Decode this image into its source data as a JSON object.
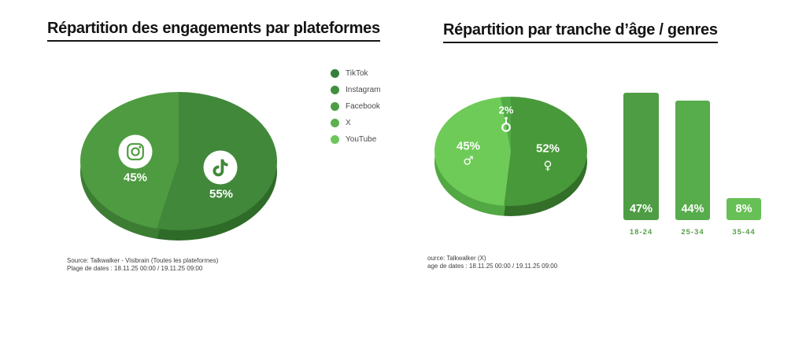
{
  "page": {
    "background": "#ffffff"
  },
  "left_section": {
    "title": "Répartition des engagements par plateformes",
    "legend": [
      {
        "label": "TikTok",
        "color": "#35813a"
      },
      {
        "label": "Instagram",
        "color": "#41903e"
      },
      {
        "label": "Facebook",
        "color": "#4d9d45"
      },
      {
        "label": "X",
        "color": "#5cb14e"
      },
      {
        "label": "YouTube",
        "color": "#6fc55b"
      }
    ],
    "source_line1": "Source: Talkwalker - Visibrain (Toutes les plateformes)",
    "source_line2": "Plage de dates : 18.11.25 00:00 / 19.11.25 09:00"
  },
  "right_section": {
    "title": "Répartition par tranche d’âge / genres",
    "source_line1": "ource: Talkwalker (X)",
    "source_line2": "age de dates : 18.11.25 00:00 / 19.11.25 09:00"
  },
  "chart_data": [
    {
      "type": "pie",
      "title": "Répartition des engagements par plateformes",
      "style": "3d",
      "legend_position": "right",
      "legend_entries": [
        "TikTok",
        "Instagram",
        "Facebook",
        "X",
        "YouTube"
      ],
      "slices": [
        {
          "label": "TikTok",
          "value": 55,
          "display": "55%",
          "color": "#41883a",
          "rim_color": "#2e6b29",
          "icon": "tiktok"
        },
        {
          "label": "Instagram",
          "value": 45,
          "display": "45%",
          "color": "#4f9b41",
          "rim_color": "#3c7d33",
          "icon": "instagram"
        }
      ]
    },
    {
      "type": "pie",
      "title": "Répartition par genres",
      "style": "3d",
      "slices": [
        {
          "label": "Femmes",
          "value": 52,
          "display": "52%",
          "symbol": "female",
          "color": "#489939",
          "rim_color": "#336f29"
        },
        {
          "label": "Hommes",
          "value": 45,
          "display": "45%",
          "symbol": "male",
          "color": "#6fcb58",
          "rim_color": "#52a843"
        },
        {
          "label": "Autre",
          "value": 2,
          "display": "2%",
          "symbol": "other",
          "color": "#52ab47",
          "rim_color": "#3d8534"
        }
      ]
    },
    {
      "type": "bar",
      "title": "Répartition par tranche d’âge",
      "categories": [
        "18-24",
        "25-34",
        "35-44"
      ],
      "values": [
        47,
        44,
        8
      ],
      "value_labels": [
        "47%",
        "44%",
        "8%"
      ],
      "colors": [
        "#4e9d44",
        "#57ac4b",
        "#67c055"
      ],
      "ylim": [
        0,
        50
      ],
      "grid": false,
      "value_label_color": "#ffffff",
      "category_label_color": "#57a04b"
    }
  ]
}
